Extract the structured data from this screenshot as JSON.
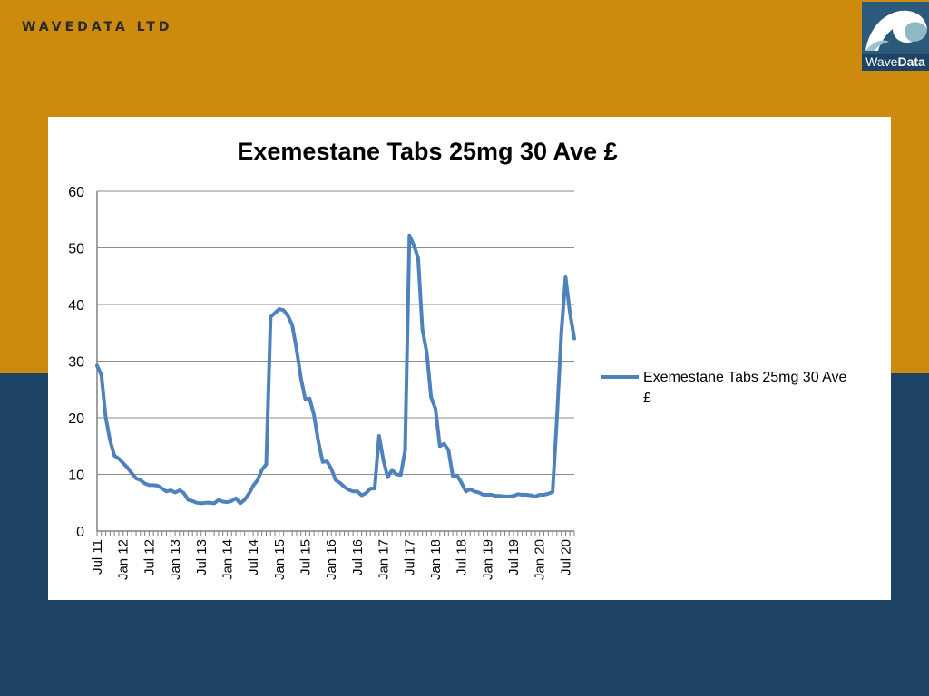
{
  "header": {
    "company": "WAVEDATA LTD",
    "logo": {
      "icon": "wave-logo-icon",
      "word_light": "Wave",
      "word_bold": "Data"
    }
  },
  "colors": {
    "gold": "#cc8b0d",
    "navy": "#1f4365",
    "series": "#4f81bd",
    "grid": "#808080"
  },
  "chart_data": {
    "type": "line",
    "title": "Exemestane Tabs 25mg 30 Ave £",
    "xlabel": "",
    "ylabel": "",
    "ylim": [
      0,
      60
    ],
    "yticks": [
      0,
      10,
      20,
      30,
      40,
      50,
      60
    ],
    "xticks": [
      "Jul 11",
      "Jan 12",
      "Jul 12",
      "Jan 13",
      "Jul 13",
      "Jan 14",
      "Jul 14",
      "Jan 15",
      "Jul 15",
      "Jan 16",
      "Jul 16",
      "Jan 17",
      "Jul 17",
      "Jan 18",
      "Jul 18",
      "Jan 19",
      "Jul 19",
      "Jan 20",
      "Jul 20"
    ],
    "grid": true,
    "legend": "right",
    "series": [
      {
        "name": "Exemestane Tabs 25mg 30 Ave £",
        "color": "#4f81bd",
        "x": [
          "2011-07",
          "2011-08",
          "2011-09",
          "2011-10",
          "2011-11",
          "2011-12",
          "2012-01",
          "2012-02",
          "2012-03",
          "2012-04",
          "2012-05",
          "2012-06",
          "2012-07",
          "2012-08",
          "2012-09",
          "2012-10",
          "2012-11",
          "2012-12",
          "2013-01",
          "2013-02",
          "2013-03",
          "2013-04",
          "2013-05",
          "2013-06",
          "2013-07",
          "2013-08",
          "2013-09",
          "2013-10",
          "2013-11",
          "2013-12",
          "2014-01",
          "2014-02",
          "2014-03",
          "2014-04",
          "2014-05",
          "2014-06",
          "2014-07",
          "2014-08",
          "2014-09",
          "2014-10",
          "2014-11",
          "2014-12",
          "2015-01",
          "2015-02",
          "2015-03",
          "2015-04",
          "2015-05",
          "2015-06",
          "2015-07",
          "2015-08",
          "2015-09",
          "2015-10",
          "2015-11",
          "2015-12",
          "2016-01",
          "2016-02",
          "2016-03",
          "2016-04",
          "2016-05",
          "2016-06",
          "2016-07",
          "2016-08",
          "2016-09",
          "2016-10",
          "2016-11",
          "2016-12",
          "2017-01",
          "2017-02",
          "2017-03",
          "2017-04",
          "2017-05",
          "2017-06",
          "2017-07",
          "2017-08",
          "2017-09",
          "2017-10",
          "2017-11",
          "2017-12",
          "2018-01",
          "2018-02",
          "2018-03",
          "2018-04",
          "2018-05",
          "2018-06",
          "2018-07",
          "2018-08",
          "2018-09",
          "2018-10",
          "2018-11",
          "2018-12",
          "2019-01",
          "2019-02",
          "2019-03",
          "2019-04",
          "2019-05",
          "2019-06",
          "2019-07",
          "2019-08",
          "2019-09",
          "2019-10",
          "2019-11",
          "2019-12",
          "2020-01",
          "2020-02",
          "2020-03",
          "2020-04",
          "2020-05",
          "2020-06",
          "2020-07",
          "2020-08",
          "2020-09"
        ],
        "values": [
          29.2,
          27.5,
          20.0,
          16.0,
          13.3,
          12.8,
          12.0,
          11.2,
          10.2,
          9.3,
          9.0,
          8.4,
          8.1,
          8.1,
          8.0,
          7.5,
          7.0,
          7.2,
          6.8,
          7.2,
          6.7,
          5.5,
          5.3,
          5.0,
          4.9,
          5.0,
          5.0,
          4.9,
          5.5,
          5.2,
          5.1,
          5.3,
          5.8,
          4.9,
          5.5,
          6.6,
          8.0,
          9.0,
          10.8,
          11.8,
          37.8,
          38.5,
          39.2,
          39.0,
          38.0,
          36.3,
          32.0,
          27.0,
          23.3,
          23.4,
          20.5,
          15.8,
          12.2,
          12.3,
          11.0,
          9.0,
          8.5,
          7.8,
          7.3,
          7.0,
          7.0,
          6.3,
          6.7,
          7.5,
          7.5,
          16.8,
          12.5,
          9.5,
          10.8,
          10.0,
          9.9,
          14.2,
          52.2,
          50.5,
          48.2,
          35.6,
          31.5,
          23.6,
          21.6,
          15.0,
          15.4,
          14.3,
          9.7,
          9.8,
          8.5,
          7.0,
          7.4,
          7.0,
          6.8,
          6.4,
          6.4,
          6.4,
          6.2,
          6.2,
          6.1,
          6.1,
          6.2,
          6.5,
          6.4,
          6.4,
          6.3,
          6.1,
          6.4,
          6.4,
          6.6,
          6.9,
          20.0,
          35.0,
          44.8,
          38.5,
          34.0
        ]
      }
    ]
  }
}
